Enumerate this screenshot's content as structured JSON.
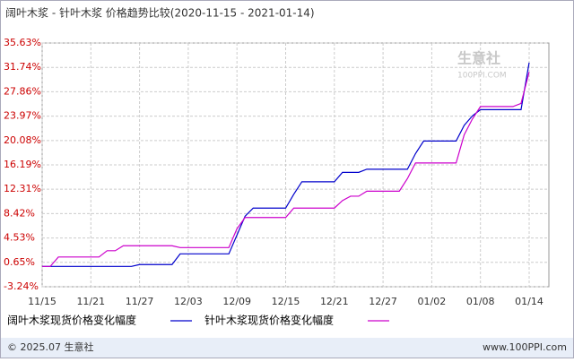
{
  "chart_data": {
    "type": "line",
    "title": "阔叶木浆 - 针叶木浆 价格趋势比较(2020-11-15 - 2021-01-14)",
    "categories": [
      "11/15",
      null,
      null,
      null,
      null,
      null,
      "11/21",
      null,
      null,
      null,
      null,
      null,
      "11/27",
      null,
      null,
      null,
      null,
      null,
      "12/03",
      null,
      null,
      null,
      null,
      null,
      "12/09",
      null,
      null,
      null,
      null,
      null,
      "12/15",
      null,
      null,
      null,
      null,
      null,
      "12/21",
      null,
      null,
      null,
      null,
      null,
      "12/27",
      null,
      null,
      null,
      null,
      null,
      "01/02",
      null,
      null,
      null,
      null,
      null,
      "01/08",
      null,
      null,
      null,
      null,
      null,
      "01/14"
    ],
    "series": [
      {
        "name": "阔叶木浆现货价格变化幅度",
        "color": "#0000cc",
        "values": [
          0,
          0,
          0,
          0,
          0,
          0,
          0,
          0,
          0,
          0,
          0,
          0,
          0.3,
          0.3,
          0.3,
          0.3,
          0.3,
          2.0,
          2.0,
          2.0,
          2.0,
          2.0,
          2.0,
          2.0,
          5.0,
          8.0,
          9.3,
          9.3,
          9.3,
          9.3,
          9.3,
          11.5,
          13.5,
          13.5,
          13.5,
          13.5,
          13.5,
          15.0,
          15.0,
          15.0,
          15.5,
          15.5,
          15.5,
          15.5,
          15.5,
          15.5,
          18.0,
          20.0,
          20.0,
          20.0,
          20.0,
          20.0,
          22.5,
          24.0,
          25.0,
          25.0,
          25.0,
          25.0,
          25.0,
          25.0,
          32.5
        ]
      },
      {
        "name": "针叶木浆现货价格变化幅度",
        "color": "#cc00cc",
        "values": [
          0,
          0,
          1.5,
          1.5,
          1.5,
          1.5,
          1.5,
          1.5,
          2.5,
          2.5,
          3.3,
          3.3,
          3.3,
          3.3,
          3.3,
          3.3,
          3.3,
          3.0,
          3.0,
          3.0,
          3.0,
          3.0,
          3.0,
          3.0,
          6.0,
          7.8,
          7.8,
          7.8,
          7.8,
          7.8,
          7.8,
          9.3,
          9.3,
          9.3,
          9.3,
          9.3,
          9.3,
          10.5,
          11.2,
          11.2,
          12.0,
          12.0,
          12.0,
          12.0,
          12.0,
          14.0,
          16.5,
          16.5,
          16.5,
          16.5,
          16.5,
          16.5,
          21.0,
          23.5,
          25.5,
          25.5,
          25.5,
          25.5,
          25.5,
          26.0,
          31.0
        ]
      }
    ],
    "ylim": [
      -3.24,
      35.63
    ],
    "yticks": [
      {
        "value": 35.63,
        "label": "35.63%"
      },
      {
        "value": 31.74,
        "label": "31.74%"
      },
      {
        "value": 27.86,
        "label": "27.86%"
      },
      {
        "value": 23.97,
        "label": "23.97%"
      },
      {
        "value": 20.08,
        "label": "20.08%"
      },
      {
        "value": 16.19,
        "label": "16.19%"
      },
      {
        "value": 12.31,
        "label": "12.31%"
      },
      {
        "value": 8.42,
        "label": "8.42%"
      },
      {
        "value": 4.53,
        "label": "4.53%"
      },
      {
        "value": 0.65,
        "label": "0.65%"
      },
      {
        "value": -3.24,
        "label": "-3.24%"
      }
    ],
    "grid": true
  },
  "watermark": {
    "name": "生意社",
    "site": "100PPI.COM"
  },
  "footer": {
    "copyright": "© 2025.07 生意社",
    "site": "www.100PPI.com"
  }
}
